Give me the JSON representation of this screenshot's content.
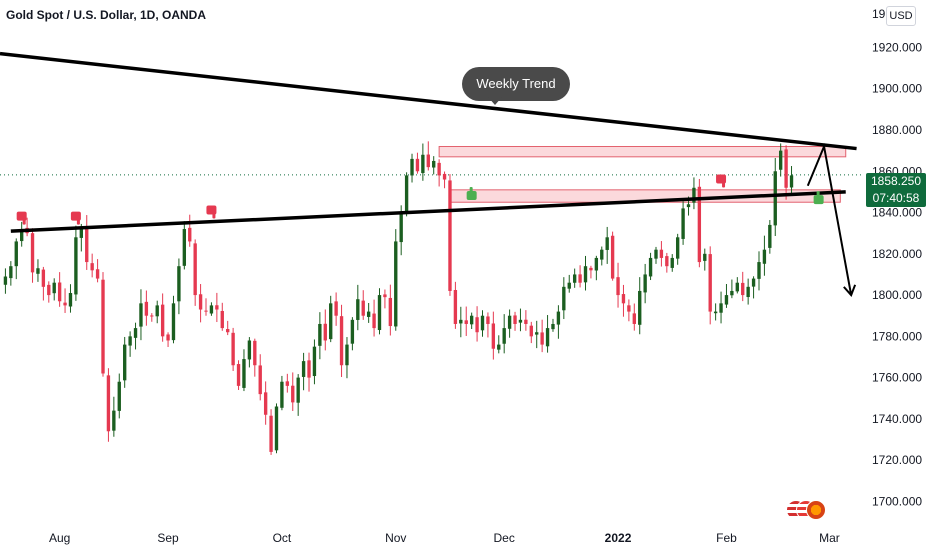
{
  "header": {
    "title": "Gold Spot / U.S. Dollar, 1D, OANDA",
    "currency": "USD"
  },
  "price_tag": {
    "price": "1858.250",
    "countdown": "07:40:58"
  },
  "annotation": {
    "label": "Weekly Trend"
  },
  "icons": {
    "sell_signal": "thumbs-down-icon",
    "buy_signal": "thumbs-up-icon",
    "flags": "currency-flags-icon"
  },
  "colors": {
    "up": "#1b5e20",
    "down": "#e53950",
    "zone_fill": "#fbd5d9",
    "zone_border": "#e0505f",
    "trendline": "#000000",
    "price_tag": "#0f6b3c",
    "bubble": "#4a4a4a"
  },
  "chart_data": {
    "type": "candlestick",
    "title": "Gold Spot / U.S. Dollar, 1D, OANDA",
    "y_axis": {
      "position": "right",
      "ticks": [
        1920,
        1900,
        1880,
        1860,
        1840,
        1820,
        1800,
        1780,
        1760,
        1740,
        1720,
        1700
      ],
      "tick_labels": [
        "1920.000",
        "1900.000",
        "1880.000",
        "1860.000",
        "1840.000",
        "1820.000",
        "1800.000",
        "1780.000",
        "1760.000",
        "1740.000",
        "1720.000",
        "1700.000"
      ],
      "top_label": "19",
      "range": [
        1691,
        1943
      ]
    },
    "x_axis": {
      "tick_labels": [
        "Aug",
        "Sep",
        "Oct",
        "Nov",
        "Dec",
        "2022",
        "Feb",
        "Mar"
      ],
      "tick_positions": [
        10,
        30,
        51,
        72,
        92,
        113,
        133,
        152
      ],
      "range": [
        -1,
        158
      ]
    },
    "last_price": 1858.25,
    "close_series": [
      1809,
      1814,
      1826,
      1832,
      1830,
      1811,
      1813,
      1804,
      1800,
      1806,
      1797,
      1795,
      1801,
      1828,
      1833,
      1816,
      1812,
      1808,
      1762,
      1734,
      1744,
      1758,
      1776,
      1780,
      1784,
      1796,
      1790,
      1790,
      1795,
      1780,
      1778,
      1796,
      1814,
      1832,
      1826,
      1800,
      1793,
      1792,
      1795,
      1793,
      1784,
      1782,
      1766,
      1756,
      1769,
      1778,
      1766,
      1752,
      1742,
      1724,
      1746,
      1758,
      1756,
      1748,
      1760,
      1768,
      1760,
      1775,
      1786,
      1778,
      1796,
      1790,
      1766,
      1776,
      1788,
      1798,
      1790,
      1792,
      1784,
      1800,
      1799,
      1785,
      1826,
      1840,
      1858,
      1866,
      1860,
      1868,
      1862,
      1865,
      1858,
      1856,
      1802,
      1786,
      1788,
      1786,
      1790,
      1782,
      1790,
      1786,
      1774,
      1776,
      1784,
      1790,
      1786,
      1788,
      1786,
      1780,
      1782,
      1776,
      1784,
      1786,
      1792,
      1804,
      1806,
      1810,
      1806,
      1814,
      1812,
      1818,
      1822,
      1828,
      1808,
      1800,
      1796,
      1792,
      1786,
      1802,
      1810,
      1818,
      1822,
      1818,
      1814,
      1818,
      1828,
      1842,
      1844,
      1852,
      1816,
      1820,
      1792,
      1792,
      1796,
      1800,
      1802,
      1806,
      1800,
      1804,
      1808,
      1816,
      1822,
      1834,
      1860,
      1870,
      1852,
      1858
    ],
    "trendlines": [
      {
        "name": "weekly-trend-resistance",
        "points": [
          [
            -1,
            1917
          ],
          [
            157,
            1871
          ]
        ]
      },
      {
        "name": "rising-support",
        "points": [
          [
            1,
            1831
          ],
          [
            155,
            1850
          ]
        ]
      }
    ],
    "zones": [
      {
        "name": "upper-resistance-zone",
        "x": [
          80,
          155
        ],
        "y": [
          1867,
          1872
        ]
      },
      {
        "name": "lower-support-zone",
        "x": [
          82,
          154
        ],
        "y": [
          1845,
          1851
        ]
      }
    ],
    "projection": [
      [
        148,
        1853
      ],
      [
        151,
        1872
      ],
      [
        156,
        1800
      ]
    ],
    "markers": [
      {
        "type": "sell",
        "x": 3,
        "price": 1838
      },
      {
        "type": "sell",
        "x": 13,
        "price": 1838
      },
      {
        "type": "sell",
        "x": 38,
        "price": 1841
      },
      {
        "type": "buy",
        "x": 86,
        "price": 1848
      },
      {
        "type": "sell",
        "x": 132,
        "price": 1856
      },
      {
        "type": "buy",
        "x": 150,
        "price": 1846
      }
    ],
    "grid": false,
    "legend": "none"
  }
}
